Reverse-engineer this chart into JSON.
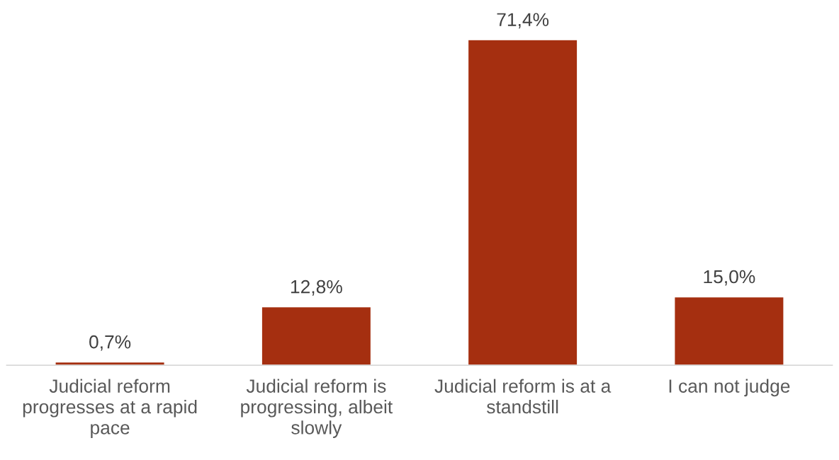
{
  "chart_data": {
    "type": "bar",
    "categories": [
      "Judicial reform progresses at a rapid pace",
      "Judicial reform is progressing, albeit slowly",
      "Judicial reform is at a standstill",
      "I can not judge"
    ],
    "values": [
      0.7,
      12.8,
      71.4,
      15.0
    ],
    "color": "#a52f10",
    "value_labels": [
      "0,7%",
      "12,8%",
      "71,4%",
      "15,0%"
    ]
  }
}
